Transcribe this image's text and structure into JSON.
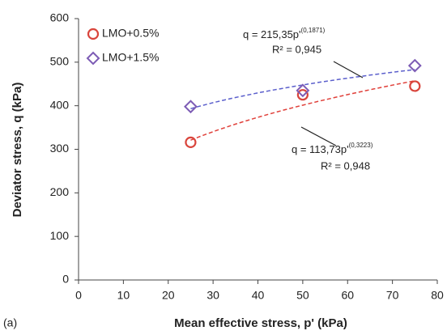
{
  "chart_data": {
    "type": "scatter",
    "x_label": "Mean effective stress, p' (kPa)",
    "y_label": "Deviator stress, q (kPa)",
    "panel_label": "(a)",
    "xlim": [
      0,
      80
    ],
    "xticks": [
      0,
      10,
      20,
      30,
      40,
      50,
      60,
      70,
      80
    ],
    "ylim": [
      0,
      600
    ],
    "yticks": [
      0,
      100,
      200,
      300,
      400,
      500,
      600
    ],
    "legend": "upper left",
    "series": [
      {
        "name": "LMO+0.5%",
        "color": "#d9453c",
        "marker": "circle",
        "x": [
          25,
          50,
          75
        ],
        "values": [
          316,
          425,
          445
        ],
        "fit": {
          "a": 113.73,
          "b": 0.3223,
          "equation": "q = 113,73p'",
          "exponent_label": "(0,3223)",
          "r2_label": "R² = 0,948",
          "color": "#e0403a"
        }
      },
      {
        "name": "LMO+1.5%",
        "color": "#7d5cb5",
        "marker": "diamond",
        "x": [
          25,
          50,
          75
        ],
        "values": [
          398,
          435,
          492
        ],
        "fit": {
          "a": 215.35,
          "b": 0.1871,
          "equation": "q = 215,35p'",
          "exponent_label": "(0,1871)",
          "r2_label": "R² = 0,945",
          "color": "#5b5fcc"
        }
      }
    ]
  }
}
